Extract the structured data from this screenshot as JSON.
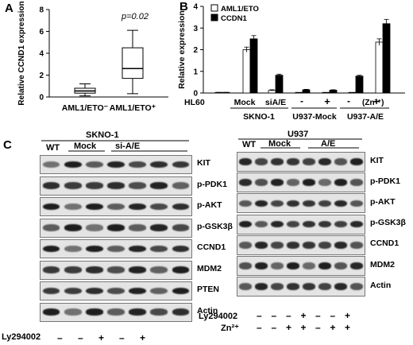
{
  "panels": {
    "a": {
      "letter": "A",
      "ylabel": "Relative CCND1 expression",
      "pvalue": "p=0.02",
      "groups": [
        "AML1/ETO⁻",
        "AML1/ETO⁺"
      ]
    },
    "b": {
      "letter": "B",
      "ylabel": "Relative expression",
      "legend": [
        "AML1/ETO",
        "CCDN1"
      ],
      "xlabels": [
        "HL60",
        "Mock",
        "siA/E",
        "SKNO-1",
        "U937-Mock",
        "U937-A/E",
        "(Zn²⁺)"
      ],
      "signs": [
        "-",
        "+",
        "-",
        "+"
      ]
    },
    "c": {
      "letter": "C",
      "left": {
        "title": "SKNO-1",
        "lanes": [
          "WT",
          "Mock",
          "si-A/E"
        ],
        "blots": [
          "KIT",
          "p-PDK1",
          "p-AKT",
          "p-GSK3β",
          "CCND1",
          "MDM2",
          "PTEN",
          "Actin"
        ],
        "treatment_label": "Ly294002",
        "treatment_signs": [
          "–",
          "–",
          "+",
          "–",
          "+"
        ]
      },
      "right": {
        "title": "U937",
        "lanes": [
          "WT",
          "Mock",
          "A/E"
        ],
        "blots": [
          "KIT",
          "p-PDK1",
          "p-AKT",
          "p-GSK3β",
          "CCND1",
          "MDM2",
          "Actin"
        ],
        "ly_label": "Ly294002",
        "ly_signs": [
          "–",
          "–",
          "–",
          "+",
          "–",
          "–",
          "+"
        ],
        "zn_label": "Zn²⁺",
        "zn_signs": [
          "–",
          "–",
          "+",
          "+",
          "–",
          "+",
          "+"
        ]
      }
    }
  },
  "chart_data": [
    {
      "type": "box",
      "ylabel": "Relative CCND1 expression",
      "categories": [
        "AML1/ETO⁻",
        "AML1/ETO⁺"
      ],
      "boxes": [
        {
          "min": 0.1,
          "q1": 0.35,
          "median": 0.55,
          "q3": 0.8,
          "max": 1.2
        },
        {
          "min": 0.3,
          "q1": 1.7,
          "median": 2.6,
          "q3": 4.5,
          "max": 6.1
        }
      ],
      "yticks": [
        0,
        2,
        4,
        6,
        8
      ],
      "ylim": [
        0,
        8
      ],
      "annotation": "p=0.02"
    },
    {
      "type": "bar",
      "ylabel": "Relative expression",
      "categories": [
        "HL60",
        "SKNO-1 Mock",
        "SKNO-1 siA/E",
        "U937-Mock -",
        "U937-Mock +",
        "U937-A/E -",
        "U937-A/E +"
      ],
      "series": [
        {
          "name": "AML1/ETO",
          "color": "#ffffff",
          "values": [
            0.02,
            2.0,
            0.12,
            0.0,
            0.0,
            0.0,
            2.35
          ],
          "errors": [
            0.01,
            0.12,
            0.03,
            0,
            0,
            0,
            0.15
          ]
        },
        {
          "name": "CCDN1",
          "color": "#000000",
          "values": [
            0.02,
            2.5,
            0.82,
            0.15,
            0.13,
            0.78,
            3.2
          ],
          "errors": [
            0.01,
            0.15,
            0.05,
            0.02,
            0.02,
            0.04,
            0.2
          ]
        }
      ],
      "yticks": [
        0,
        1,
        2,
        3,
        4
      ],
      "ylim": [
        0,
        4
      ]
    }
  ]
}
